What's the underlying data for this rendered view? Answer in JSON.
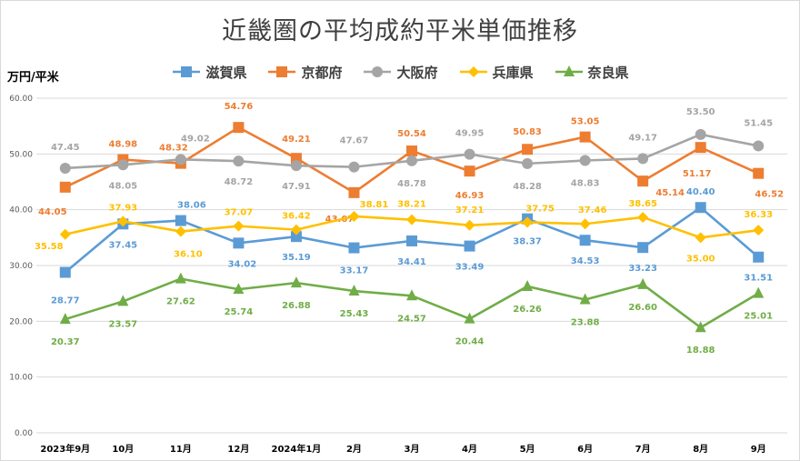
{
  "chart_data": {
    "type": "line",
    "title": "近畿圏の平均成約平米単価推移",
    "ylabel": "万円/平米",
    "xlabel": "",
    "ylim": [
      0,
      60
    ],
    "yticks": [
      "0.00",
      "10.00",
      "20.00",
      "30.00",
      "40.00",
      "50.00",
      "60.00"
    ],
    "grid": true,
    "legend": "top",
    "categories": [
      "2023年9月",
      "10月",
      "11月",
      "12月",
      "2024年1月",
      "2月",
      "3月",
      "4月",
      "5月",
      "6月",
      "7月",
      "8月",
      "9月"
    ],
    "series": [
      {
        "name": "滋賀県",
        "color": "#5b9bd5",
        "marker": "square",
        "values": [
          28.77,
          37.45,
          38.06,
          34.02,
          35.19,
          33.17,
          34.41,
          33.49,
          38.37,
          34.53,
          33.23,
          40.4,
          31.51
        ],
        "labels": [
          "28.77",
          "37.45",
          "38.06",
          "34.02",
          "35.19",
          "33.17",
          "34.41",
          "33.49",
          "38.37",
          "34.53",
          "33.23",
          "40.40",
          "31.51"
        ]
      },
      {
        "name": "京都府",
        "color": "#ed7d31",
        "marker": "square",
        "values": [
          44.05,
          48.98,
          48.32,
          54.76,
          49.21,
          43.07,
          50.54,
          46.93,
          50.83,
          53.05,
          45.14,
          51.17,
          46.52
        ],
        "labels": [
          "44.05",
          "48.98",
          "48.32",
          "54.76",
          "49.21",
          "43.07",
          "50.54",
          "46.93",
          "50.83",
          "53.05",
          "45.14",
          "51.17",
          "46.52"
        ]
      },
      {
        "name": "大阪府",
        "color": "#a5a5a5",
        "marker": "circle",
        "values": [
          47.45,
          48.05,
          49.02,
          48.72,
          47.91,
          47.67,
          48.78,
          49.95,
          48.28,
          48.83,
          49.17,
          53.5,
          51.45
        ],
        "labels": [
          "47.45",
          "48.05",
          "49.02",
          "48.72",
          "47.91",
          "47.67",
          "48.78",
          "49.95",
          "48.28",
          "48.83",
          "49.17",
          "53.50",
          "51.45"
        ]
      },
      {
        "name": "兵庫県",
        "color": "#ffc000",
        "marker": "diamond",
        "values": [
          35.58,
          37.93,
          36.1,
          37.07,
          36.42,
          38.81,
          38.21,
          37.21,
          37.75,
          37.46,
          38.65,
          35.0,
          36.33
        ],
        "labels": [
          "35.58",
          "37.93",
          "36.10",
          "37.07",
          "36.42",
          "38.81",
          "38.21",
          "37.21",
          "37.75",
          "37.46",
          "38.65",
          "35.00",
          "36.33"
        ]
      },
      {
        "name": "奈良県",
        "color": "#70ad47",
        "marker": "triangle",
        "values": [
          20.37,
          23.57,
          27.62,
          25.74,
          26.88,
          25.43,
          24.57,
          20.44,
          26.26,
          23.88,
          26.6,
          18.88,
          25.01
        ],
        "labels": [
          "20.37",
          "23.57",
          "27.62",
          "25.74",
          "26.88",
          "25.43",
          "24.57",
          "20.44",
          "26.26",
          "23.88",
          "26.60",
          "18.88",
          "25.01"
        ]
      }
    ]
  }
}
